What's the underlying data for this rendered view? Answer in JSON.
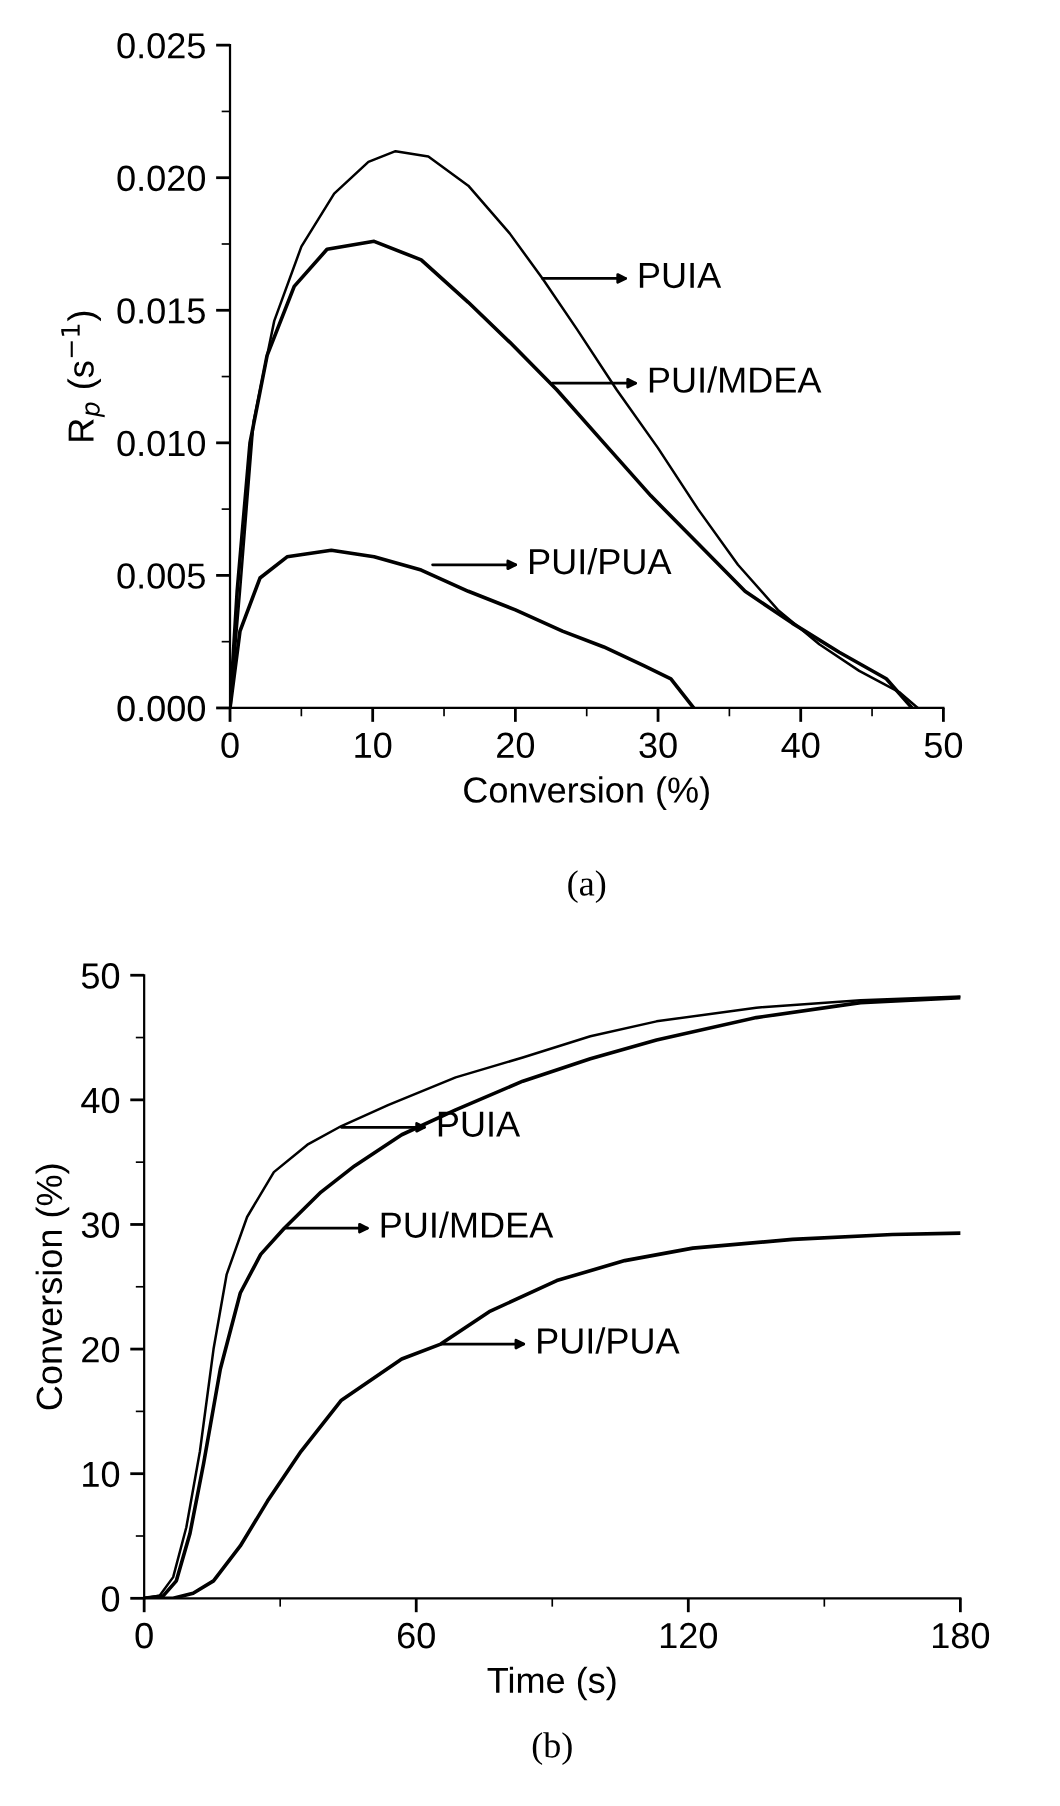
{
  "chart_data": [
    {
      "type": "line",
      "xlabel": "Conversion (%)",
      "ylabel": "R$_{p}$ (s$^{−1}$)",
      "xlim": [
        0,
        50
      ],
      "ylim": [
        0,
        0.025
      ],
      "xticks": [
        0,
        10,
        20,
        30,
        40,
        50
      ],
      "yticks": [
        {
          "value": 0,
          "label": "0.000"
        },
        {
          "value": 0.005,
          "label": "0.005"
        },
        {
          "value": 0.01,
          "label": "0.010"
        },
        {
          "value": 0.015,
          "label": "0.015"
        },
        {
          "value": 0.02,
          "label": "0.020"
        },
        {
          "value": 0.025,
          "label": "0.025"
        }
      ],
      "grid": false,
      "legend": false,
      "marker": "none",
      "line_style": "solid",
      "series": [
        {
          "color": "#000000",
          "x": [
            0,
            0.7,
            1.65,
            3.1,
            5,
            7.3,
            9.7,
            11.6,
            13.9,
            16.7,
            19.6,
            21.9,
            24.3,
            27.1,
            30,
            32.8,
            35.6,
            38.4,
            41.3,
            44.1,
            46.9,
            48.2
          ],
          "values": [
            0,
            0.0044,
            0.0108,
            0.0146,
            0.0174,
            0.0194,
            0.0206,
            0.021,
            0.0208,
            0.0197,
            0.0179,
            0.0162,
            0.0143,
            0.012,
            0.0098,
            0.0075,
            0.0054,
            0.0037,
            0.0024,
            0.0014,
            0.0006,
            0
          ]
        },
        {
          "color": "#000000",
          "x": [
            0,
            0.5,
            1.4,
            2.6,
            4.5,
            6.8,
            10.1,
            13.4,
            16.7,
            19.6,
            22.9,
            26.2,
            29.5,
            32.8,
            36.1,
            39.4,
            42.7,
            46,
            47.8
          ],
          "values": [
            0,
            0.0044,
            0.01,
            0.0133,
            0.0159,
            0.0173,
            0.0176,
            0.0169,
            0.0153,
            0.0138,
            0.012,
            0.01,
            0.008,
            0.0062,
            0.0044,
            0.0032,
            0.0021,
            0.0011,
            0
          ]
        },
        {
          "color": "#000000",
          "x": [
            0,
            0.7,
            2.1,
            4,
            7.1,
            10.1,
            13.4,
            16.7,
            20,
            23.3,
            26.2,
            29,
            30.9,
            32.5
          ],
          "values": [
            0,
            0.0029,
            0.0049,
            0.0057,
            0.00595,
            0.0057,
            0.0052,
            0.0044,
            0.0037,
            0.0029,
            0.0023,
            0.0016,
            0.0011,
            0
          ]
        }
      ],
      "annotations": [
        {
          "text": "PUIA",
          "x": 21.9,
          "y": 0.0162
        },
        {
          "text": "PUI/MDEA",
          "x": 22.6,
          "y": 0.01225
        },
        {
          "text": "PUI/PUA",
          "x": 14.2,
          "y": 0.0054
        },
        "(a)"
      ]
    },
    {
      "type": "line",
      "xlabel": "Time (s)",
      "ylabel": "Conversion (%)",
      "xlim": [
        0,
        180
      ],
      "ylim": [
        0,
        50
      ],
      "xticks": [
        0,
        60,
        120,
        180
      ],
      "yticks": [
        0,
        10,
        20,
        30,
        40,
        50
      ],
      "grid": false,
      "legend": false,
      "marker": "none",
      "line_style": "solid",
      "series": [
        {
          "color": "#000000",
          "x": [
            0,
            3.4,
            6.4,
            9.3,
            12.3,
            15.3,
            18.2,
            22.7,
            28.6,
            36,
            43.5,
            53.9,
            68.7,
            83.5,
            98.4,
            113,
            135,
            158,
            180
          ],
          "values": [
            0,
            0.2,
            1.7,
            5.7,
            11.8,
            20,
            26,
            30.6,
            34.2,
            36.4,
            37.9,
            39.6,
            41.8,
            43.4,
            45.1,
            46.3,
            47.4,
            48,
            48.3
          ]
        },
        {
          "color": "#000000",
          "x": [
            0,
            4.2,
            7.1,
            10.1,
            13.1,
            16.8,
            21.2,
            25.7,
            30.9,
            39,
            46.4,
            56.8,
            68.7,
            83.5,
            98.4,
            113,
            135,
            158,
            180
          ],
          "values": [
            0,
            0.2,
            1.4,
            5.2,
            10.8,
            18.4,
            24.5,
            27.6,
            29.7,
            32.6,
            34.7,
            37.2,
            39.2,
            41.5,
            43.3,
            44.8,
            46.6,
            47.8,
            48.2
          ]
        },
        {
          "color": "#000000",
          "x": [
            0,
            6.4,
            10.8,
            15.3,
            21.2,
            27.2,
            34.6,
            43.5,
            56.8,
            65.4,
            76.1,
            91,
            106,
            121,
            143,
            165,
            180
          ],
          "values": [
            0,
            0,
            0.4,
            1.4,
            4.2,
            7.8,
            11.8,
            15.9,
            19.2,
            20.4,
            23,
            25.5,
            27.1,
            28.1,
            28.8,
            29.2,
            29.3
          ]
        }
      ],
      "annotations": [
        {
          "text": "PUIA",
          "x": 43.5,
          "y": 37.8
        },
        {
          "text": "PUI/MDEA",
          "x": 30.9,
          "y": 29.7
        },
        {
          "text": "PUI/PUA",
          "x": 65.4,
          "y": 20.4
        },
        "(b)"
      ]
    }
  ]
}
